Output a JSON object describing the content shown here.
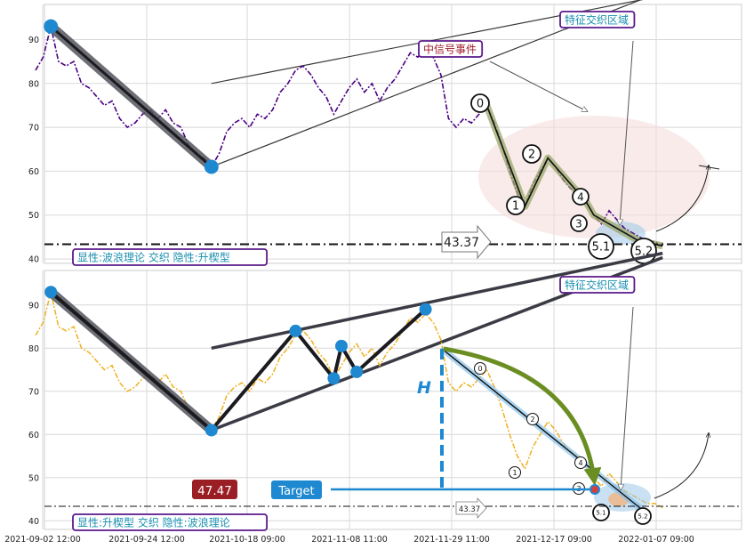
{
  "chart_data": [
    {
      "type": "line",
      "panel": "top",
      "x_ticks": [
        "2021-09-02 12:00",
        "2021-09-24 12:00",
        "2021-10-18 09:00",
        "2021-11-08 11:00",
        "2021-11-29 11:00",
        "2021-12-17 09:00",
        "2022-01-07 09:00"
      ],
      "y_ticks": [
        40,
        50,
        60,
        70,
        80,
        90
      ],
      "ylim": [
        39,
        98
      ],
      "price_line": [
        [
          0,
          83
        ],
        [
          1,
          86
        ],
        [
          2,
          93
        ],
        [
          3,
          85
        ],
        [
          4,
          84
        ],
        [
          5,
          85
        ],
        [
          6,
          80
        ],
        [
          7,
          79
        ],
        [
          8,
          77
        ],
        [
          9,
          75
        ],
        [
          10,
          76
        ],
        [
          11,
          72
        ],
        [
          12,
          70
        ],
        [
          13,
          71
        ],
        [
          14,
          73
        ],
        [
          15,
          74
        ],
        [
          16,
          72
        ],
        [
          17,
          74
        ],
        [
          18,
          71
        ],
        [
          19,
          70
        ],
        [
          20,
          66
        ],
        [
          21,
          64
        ],
        [
          22,
          63
        ],
        [
          23,
          61
        ],
        [
          24,
          64
        ],
        [
          25,
          69
        ],
        [
          26,
          71
        ],
        [
          27,
          72
        ],
        [
          28,
          70
        ],
        [
          29,
          73
        ],
        [
          30,
          72
        ],
        [
          31,
          74
        ],
        [
          32,
          78
        ],
        [
          33,
          80
        ],
        [
          34,
          83
        ],
        [
          35,
          84
        ],
        [
          36,
          82
        ],
        [
          37,
          79
        ],
        [
          38,
          77
        ],
        [
          39,
          73
        ],
        [
          40,
          76
        ],
        [
          41,
          79
        ],
        [
          42,
          81
        ],
        [
          43,
          78
        ],
        [
          44,
          80
        ],
        [
          45,
          76
        ],
        [
          46,
          79
        ],
        [
          47,
          81
        ],
        [
          48,
          84
        ],
        [
          49,
          87
        ],
        [
          50,
          86
        ],
        [
          51,
          88
        ],
        [
          52,
          86
        ],
        [
          53,
          82
        ],
        [
          54,
          72
        ],
        [
          55,
          70
        ],
        [
          56,
          72
        ],
        [
          57,
          71
        ],
        [
          58,
          73
        ],
        [
          59,
          75
        ],
        [
          60,
          71
        ],
        [
          61,
          66
        ],
        [
          62,
          60
        ],
        [
          63,
          55
        ],
        [
          64,
          52
        ],
        [
          65,
          57
        ],
        [
          66,
          60
        ],
        [
          67,
          63
        ],
        [
          68,
          61
        ],
        [
          69,
          58
        ],
        [
          70,
          56
        ],
        [
          71,
          55
        ],
        [
          72,
          53
        ],
        [
          73,
          50
        ],
        [
          74,
          48
        ],
        [
          75,
          51
        ],
        [
          76,
          49
        ],
        [
          77,
          47
        ],
        [
          78,
          46
        ],
        [
          79,
          45
        ],
        [
          80,
          44
        ],
        [
          81,
          44
        ],
        [
          82,
          43
        ]
      ],
      "pattern_line": [
        [
          2,
          93
        ],
        [
          23,
          61
        ]
      ],
      "channel_lines": [
        [
          [
            23,
            80
          ],
          [
            82,
            100
          ]
        ],
        [
          [
            23,
            61
          ],
          [
            82,
            101
          ]
        ]
      ],
      "pivots": [
        [
          2,
          93
        ],
        [
          23,
          61
        ]
      ],
      "wave_path": [
        [
          59,
          75
        ],
        [
          64,
          52
        ],
        [
          67,
          63
        ],
        [
          72,
          53
        ],
        [
          73,
          50
        ],
        [
          79,
          44
        ],
        [
          82,
          43
        ]
      ],
      "wave_labels": [
        {
          "text": "0",
          "x": 59,
          "y": 75
        },
        {
          "text": "1",
          "x": 64,
          "y": 52
        },
        {
          "text": "2",
          "x": 67,
          "y": 63
        },
        {
          "text": "3",
          "x": 73,
          "y": 47.5
        },
        {
          "text": "4",
          "x": 72,
          "y": 54
        },
        {
          "text": "5.1",
          "x": 74.5,
          "y": 41.5
        },
        {
          "text": "5.2",
          "x": 79.5,
          "y": 41.5
        }
      ],
      "hline": 43.37,
      "hline_label": "43.37",
      "annotations": [
        {
          "text": "特征交织区域",
          "color": "#1a8fb0",
          "border": "#5a1a8a"
        },
        {
          "text": "中信号事件",
          "color": "#a01a2a",
          "border": "#5a1a8a"
        },
        {
          "text": "显性:波浪理论 交织 隐性:升楔型",
          "color": "#1a8fb0",
          "border": "#5a1a8a"
        }
      ]
    },
    {
      "type": "line",
      "panel": "bottom",
      "x_ticks": [
        "2021-09-02 12:00",
        "2021-09-24 12:00",
        "2021-10-18 09:00",
        "2021-11-08 11:00",
        "2021-11-29 11:00",
        "2021-12-17 09:00",
        "2022-01-07 09:00"
      ],
      "y_ticks": [
        40,
        50,
        60,
        70,
        80,
        90
      ],
      "ylim": [
        38,
        98
      ],
      "zigzag": [
        [
          2,
          93
        ],
        [
          23,
          61
        ],
        [
          34,
          84
        ],
        [
          39,
          73
        ],
        [
          40,
          80.5
        ],
        [
          42,
          74.5
        ],
        [
          51,
          89
        ]
      ],
      "pattern_line": [
        [
          2,
          93
        ],
        [
          23,
          61
        ]
      ],
      "channel_lines": [
        [
          [
            23,
            80
          ],
          [
            82,
            102
          ]
        ],
        [
          [
            23,
            61
          ],
          [
            82,
            101
          ]
        ]
      ],
      "target_value": "47.47",
      "target_label": "Target",
      "height_label": "H",
      "hline": 43.37,
      "hline_label": "43.37",
      "annotations": [
        {
          "text": "特征交织区域",
          "color": "#1a8fb0",
          "border": "#5a1a8a"
        },
        {
          "text": "显性:升楔型 交织 隐性:波浪理论",
          "color": "#1a8fb0",
          "border": "#5a1a8a"
        }
      ]
    }
  ],
  "colors": {
    "top_price": "#4b0082",
    "bottom_price": "#f0b020",
    "pattern": "#2a2a30",
    "pivot": "#1e88d0",
    "target_box": "#9a1f24",
    "target_label_bg": "#1e88d0",
    "h_line": "#1e88d0",
    "arrow_green": "#6b8e23"
  }
}
